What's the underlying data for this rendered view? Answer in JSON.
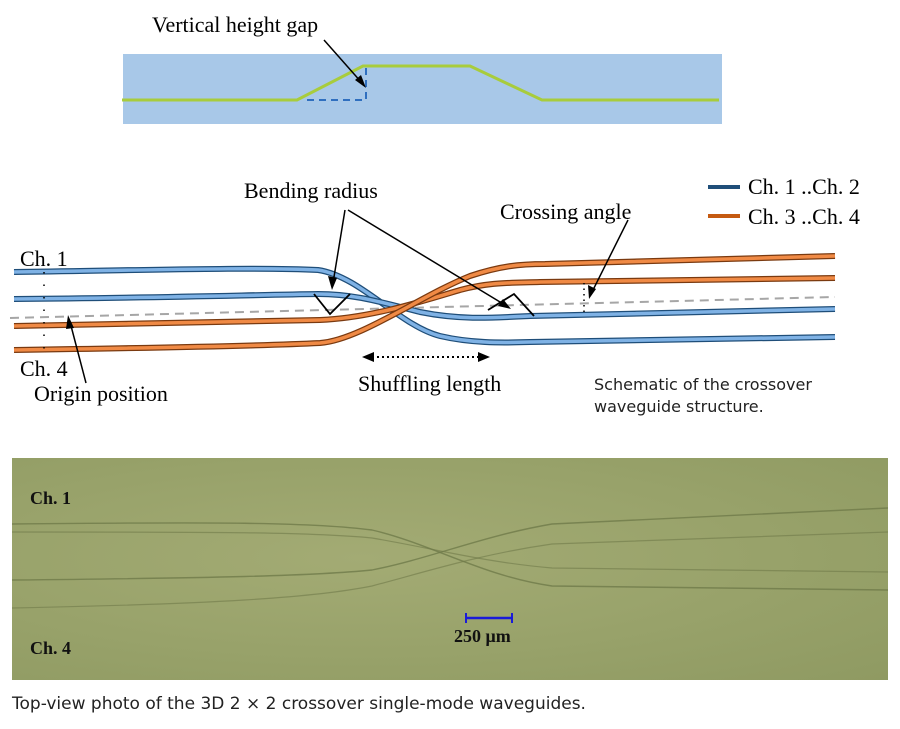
{
  "top_schematic": {
    "vertical_gap_label": "Vertical height gap",
    "colors": {
      "background": "#a8c8e8",
      "path": "#a8cc3c",
      "dashed": "#2f6fbf"
    }
  },
  "crossover_schematic": {
    "bending_radius_label": "Bending radius",
    "crossing_angle_label": "Crossing angle",
    "channel_top_label": "Ch. 1",
    "channel_bottom_label": "Ch. 4",
    "origin_position_label": "Origin position",
    "shuffling_length_label": "Shuffling length",
    "legend": [
      {
        "label": "Ch. 1 ..Ch. 2",
        "color": "#1f4e79"
      },
      {
        "label": "Ch. 3 ..Ch. 4",
        "color": "#c55a11"
      }
    ],
    "caption": "Schematic of the crossover waveguide structure.",
    "colors": {
      "blue_guide": "#5b9bd5",
      "orange_guide": "#ed7d31",
      "center_line": "#a6a6a6"
    }
  },
  "photo": {
    "channel_top_label": "Ch. 1",
    "channel_bottom_label": "Ch. 4",
    "scale_bar_label": "250 μm",
    "colors": {
      "background": "#99a36b",
      "scale_bar": "#1a1ad8"
    },
    "caption": "Top-view photo of the 3D 2 × 2 crossover single-mode waveguides."
  }
}
